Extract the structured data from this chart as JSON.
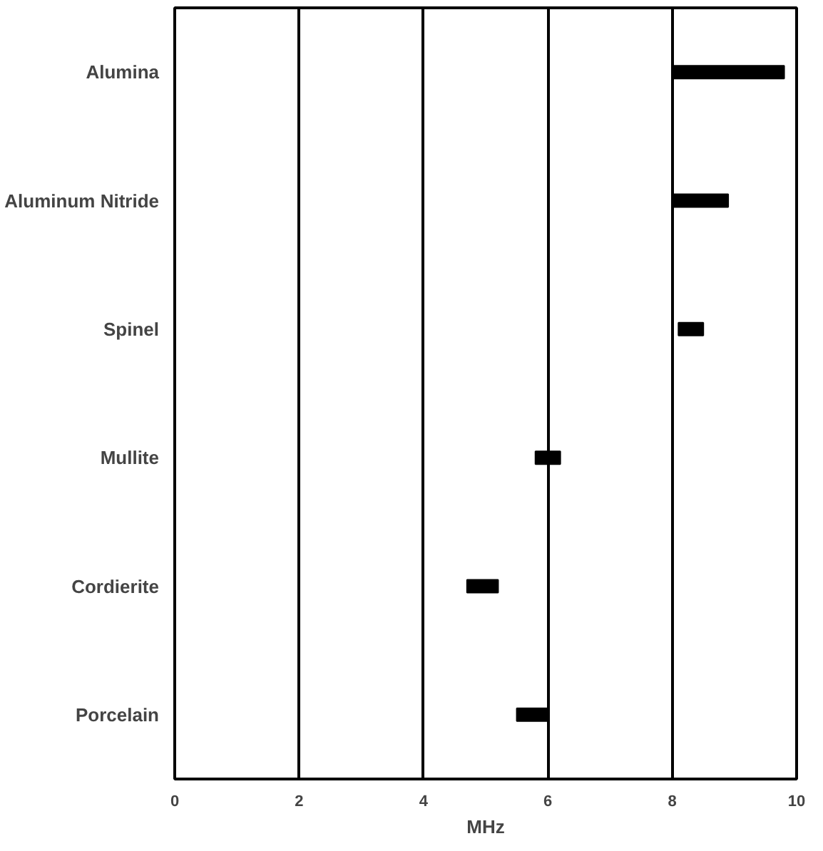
{
  "chart_data": {
    "type": "bar",
    "orientation": "horizontal",
    "xlabel": "MHz",
    "categories": [
      "Alumina",
      "Aluminum Nitride",
      "Spinel",
      "Mullite",
      "Cordierite",
      "Porcelain"
    ],
    "base": [
      8.0,
      8.0,
      8.1,
      5.8,
      4.7,
      5.5
    ],
    "values": [
      1.8,
      0.9,
      0.4,
      0.4,
      0.5,
      0.5
    ],
    "color": "#000000",
    "xlim": [
      0,
      10
    ],
    "xticks": [
      0,
      2,
      4,
      6,
      8,
      10
    ],
    "grid": "x"
  }
}
